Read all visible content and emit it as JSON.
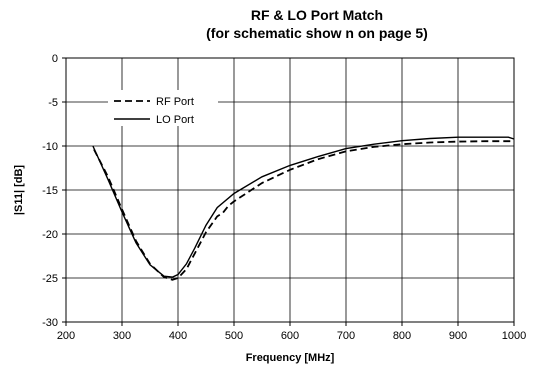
{
  "chart_data": {
    "type": "line",
    "title": "RF & LO Port Match",
    "subtitle": "(for schematic show n on page 5)",
    "xlabel": "Frequency [MHz]",
    "ylabel": "|S11| [dB]",
    "xlim": [
      200,
      1000
    ],
    "ylim": [
      -30,
      0
    ],
    "xticks": [
      200,
      300,
      400,
      500,
      600,
      700,
      800,
      900,
      1000
    ],
    "yticks": [
      0,
      -5,
      -10,
      -15,
      -20,
      -25,
      -30
    ],
    "grid": true,
    "legend": "upper-left",
    "series": [
      {
        "name": "RF Port",
        "style": "dashed",
        "color": "#000000",
        "x": [
          250,
          275,
          300,
          325,
          350,
          375,
          390,
          400,
          415,
          430,
          450,
          470,
          480,
          490,
          500,
          550,
          600,
          650,
          700,
          750,
          800,
          850,
          900,
          950,
          1000
        ],
        "y": [
          -10.4,
          -13.5,
          -17.2,
          -20.8,
          -23.4,
          -24.9,
          -25.2,
          -25.0,
          -24.0,
          -22.2,
          -19.8,
          -18.0,
          -17.6,
          -16.8,
          -16.3,
          -14.2,
          -12.7,
          -11.5,
          -10.6,
          -10.1,
          -9.8,
          -9.6,
          -9.5,
          -9.45,
          -9.45
        ]
      },
      {
        "name": "LO Port",
        "style": "solid",
        "color": "#000000",
        "x": [
          248,
          275,
          300,
          325,
          350,
          375,
          390,
          400,
          415,
          430,
          450,
          470,
          500,
          550,
          600,
          650,
          700,
          750,
          800,
          850,
          900,
          950,
          990,
          1000
        ],
        "y": [
          -10.0,
          -13.8,
          -17.5,
          -21.0,
          -23.5,
          -24.8,
          -24.9,
          -24.6,
          -23.4,
          -21.6,
          -19.0,
          -17.0,
          -15.4,
          -13.5,
          -12.2,
          -11.2,
          -10.3,
          -9.8,
          -9.4,
          -9.15,
          -9.0,
          -9.0,
          -9.0,
          -9.2
        ]
      }
    ]
  }
}
